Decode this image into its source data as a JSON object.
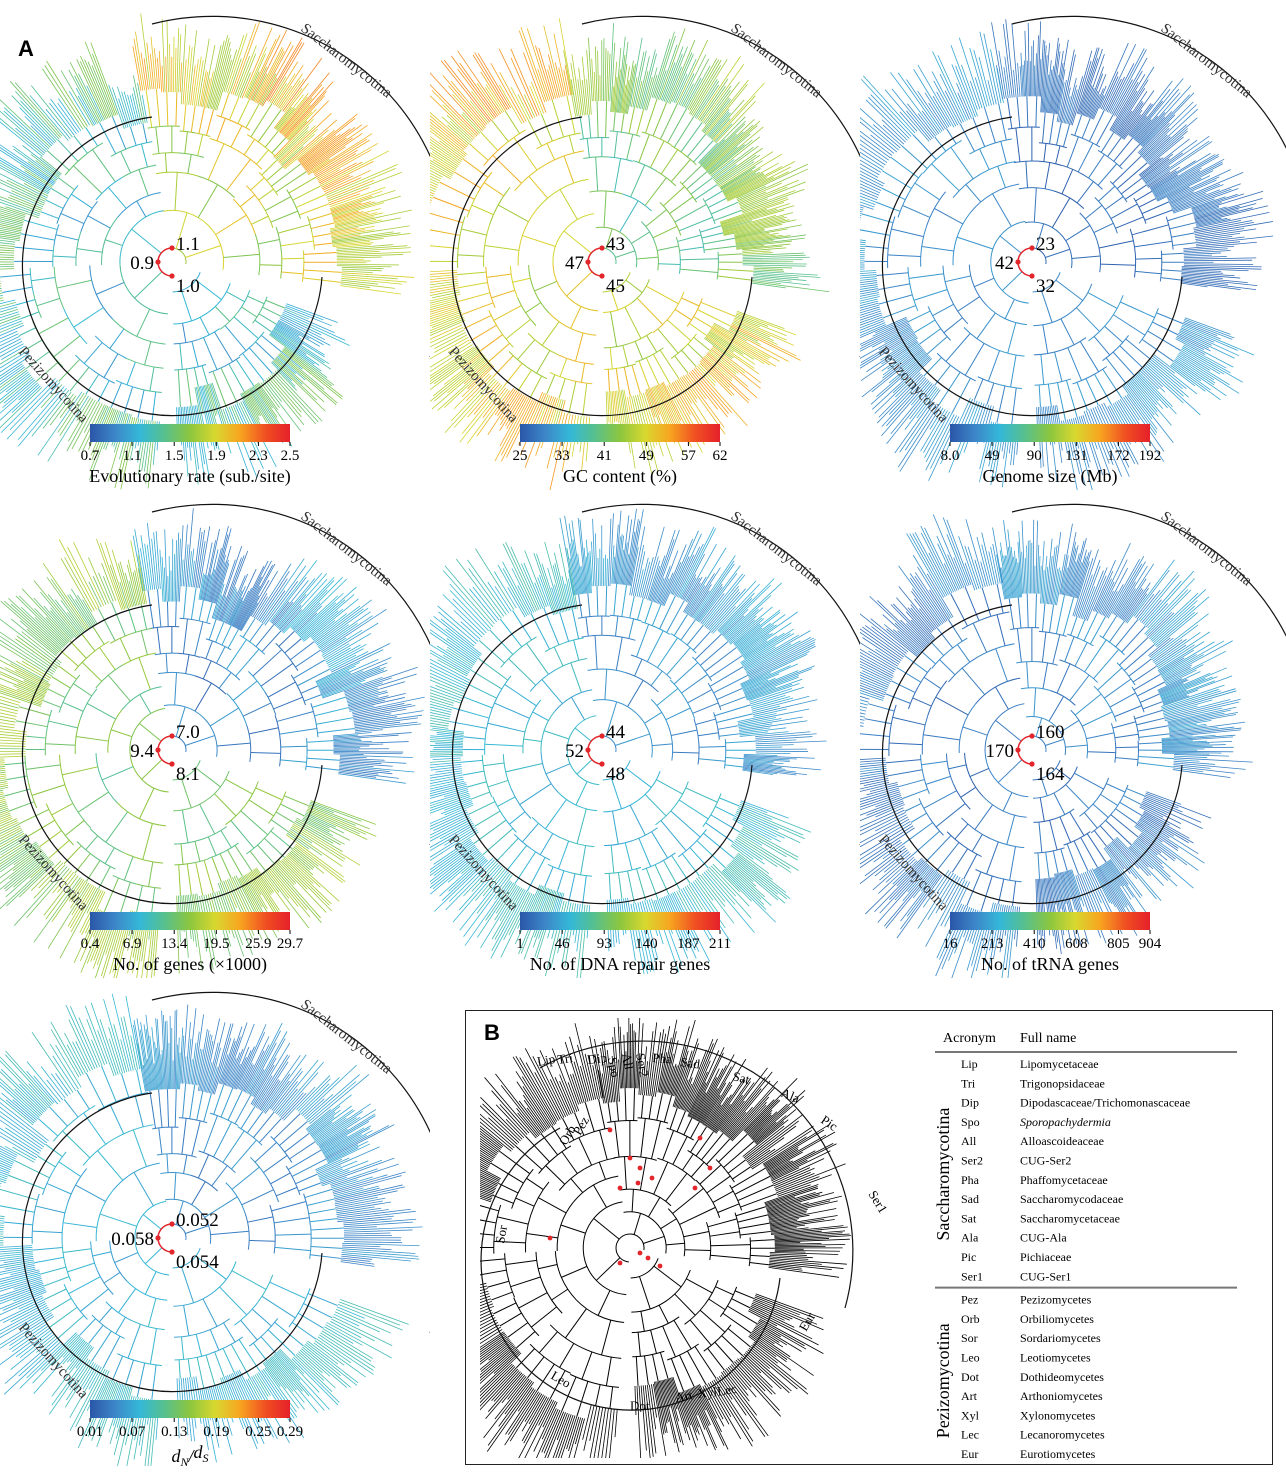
{
  "panel_a_label": "A",
  "panel_b_label": "B",
  "clade_labels": {
    "top": "Saccharomycotina",
    "bottom": "Pezizomycotina"
  },
  "colors": {
    "ramp": [
      "#2a56a8",
      "#3d86c8",
      "#34b8d8",
      "#58c08c",
      "#8cc63e",
      "#d8d830",
      "#f7a520",
      "#f05022",
      "#e5202a"
    ],
    "node_dot": "#e3262b",
    "tree_b": "#000000"
  },
  "trees": [
    {
      "id": "rate",
      "values": {
        "saccharomycotina": "1.1",
        "pezizomycotina": "0.9",
        "root": "1.0"
      },
      "colorbar": {
        "ticks": [
          "0.7",
          "1.1",
          "1.5",
          "1.9",
          "2.3",
          "2.5"
        ],
        "label": "Evolutionary rate (sub./site)"
      }
    },
    {
      "id": "gc",
      "values": {
        "saccharomycotina": "43",
        "pezizomycotina": "47",
        "root": "45"
      },
      "colorbar": {
        "ticks": [
          "25",
          "33",
          "41",
          "49",
          "57",
          "62"
        ],
        "label": "GC content (%)"
      }
    },
    {
      "id": "genome",
      "values": {
        "saccharomycotina": "23",
        "pezizomycotina": "42",
        "root": "32"
      },
      "colorbar": {
        "ticks": [
          "8.0",
          "49",
          "90",
          "131",
          "172",
          "192"
        ],
        "label": "Genome size (Mb)"
      }
    },
    {
      "id": "genes",
      "values": {
        "saccharomycotina": "7.0",
        "pezizomycotina": "9.4",
        "root": "8.1"
      },
      "colorbar": {
        "ticks": [
          "0.4",
          "6.9",
          "13.4",
          "19.5",
          "25.9",
          "29.7"
        ],
        "label": "No. of genes (×1000)"
      }
    },
    {
      "id": "dna",
      "values": {
        "saccharomycotina": "44",
        "pezizomycotina": "52",
        "root": "48"
      },
      "colorbar": {
        "ticks": [
          "1",
          "46",
          "93",
          "140",
          "187",
          "211"
        ],
        "label": "No. of DNA repair genes"
      }
    },
    {
      "id": "trna",
      "values": {
        "saccharomycotina": "160",
        "pezizomycotina": "170",
        "root": "164"
      },
      "colorbar": {
        "ticks": [
          "16",
          "213",
          "410",
          "608",
          "805",
          "904"
        ],
        "label": "No. of tRNA genes"
      }
    },
    {
      "id": "dnds",
      "values": {
        "saccharomycotina": "0.052",
        "pezizomycotina": "0.058",
        "root": "0.054"
      },
      "colorbar": {
        "ticks": [
          "0.01",
          "0.07",
          "0.13",
          "0.19",
          "0.25",
          "0.29"
        ],
        "label_main": "d",
        "label_sub_n": "N",
        "label_slash": "/",
        "label_main2": "d",
        "label_sub_s": "S"
      }
    }
  ],
  "tree_b_labels": [
    "Lip",
    "Tri",
    "Dip",
    "Spo",
    "All",
    "Ser2",
    "Pha",
    "Sad",
    "Sat",
    "Ala",
    "Pic",
    "Ser1",
    "Eur",
    "Lec",
    "Xyl",
    "Art",
    "Dot",
    "Leo",
    "Sor",
    "Orb",
    "Pez"
  ],
  "table": {
    "headers": [
      "Acronym",
      "Full name"
    ],
    "groups": [
      {
        "name": "Saccharomycotina",
        "rows": [
          [
            "Lip",
            "Lipomycetaceae"
          ],
          [
            "Tri",
            "Trigonopsidaceae"
          ],
          [
            "Dip",
            "Dipodascaceae/Trichomonascaceae"
          ],
          [
            "Spo",
            "Sporopachydermia"
          ],
          [
            "All",
            "Alloascoideaceae"
          ],
          [
            "Ser2",
            "CUG-Ser2"
          ],
          [
            "Pha",
            "Phaffomycetaceae"
          ],
          [
            "Sad",
            "Saccharomycodaceae"
          ],
          [
            "Sat",
            "Saccharomycetaceae"
          ],
          [
            "Ala",
            "CUG-Ala"
          ],
          [
            "Pic",
            "Pichiaceae"
          ],
          [
            "Ser1",
            "CUG-Ser1"
          ]
        ]
      },
      {
        "name": "Pezizomycotina",
        "rows": [
          [
            "Pez",
            "Pezizomycetes"
          ],
          [
            "Orb",
            "Orbiliomycetes"
          ],
          [
            "Sor",
            "Sordariomycetes"
          ],
          [
            "Leo",
            "Leotiomycetes"
          ],
          [
            "Dot",
            "Dothideomycetes"
          ],
          [
            "Art",
            "Arthoniomycetes"
          ],
          [
            "Xyl",
            "Xylonomycetes"
          ],
          [
            "Lec",
            "Lecanoromycetes"
          ],
          [
            "Eur",
            "Eurotiomycetes"
          ]
        ]
      }
    ]
  }
}
